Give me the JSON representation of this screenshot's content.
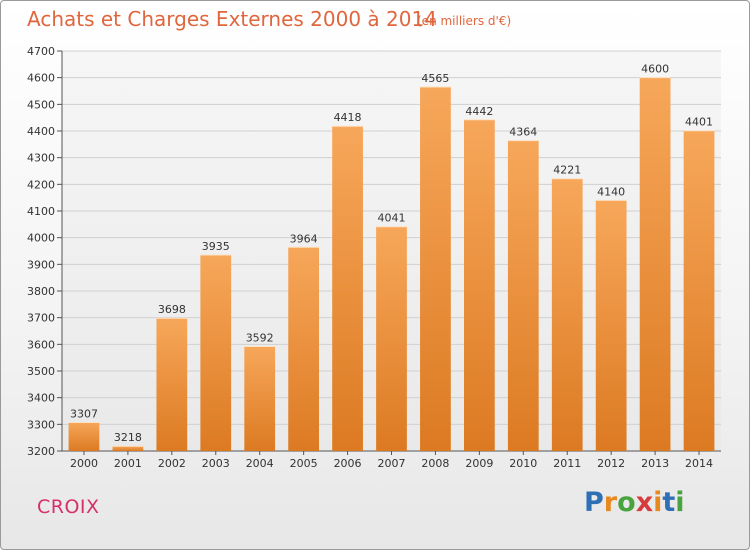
{
  "title": "Achats et Charges Externes 2000 à 2014",
  "subtitle": "(en milliers d'€)",
  "place": "CROIX",
  "logo": {
    "text": "Proxiti",
    "letter_colors": [
      "#2f6fb5",
      "#e8891f",
      "#49a33f",
      "#d73c3c",
      "#e8891f",
      "#2f6fb5",
      "#49a33f"
    ]
  },
  "colors": {
    "bar_top": "#f7a75a",
    "bar_bottom": "#dc7a22",
    "title": "#e0663e",
    "place": "#d6306b",
    "grid": "#d0d0d0"
  },
  "chart_data": {
    "type": "bar",
    "categories": [
      "2000",
      "2001",
      "2002",
      "2003",
      "2004",
      "2005",
      "2006",
      "2007",
      "2008",
      "2009",
      "2010",
      "2011",
      "2012",
      "2013",
      "2014"
    ],
    "values": [
      3307,
      3218,
      3698,
      3935,
      3592,
      3964,
      4418,
      4041,
      4565,
      4442,
      4364,
      4221,
      4140,
      4600,
      4401
    ],
    "title": "Achats et Charges Externes 2000 à 2014",
    "xlabel": "",
    "ylabel": "",
    "ylim": [
      3200,
      4700
    ],
    "yticks": [
      3200,
      3300,
      3400,
      3500,
      3600,
      3700,
      3800,
      3900,
      4000,
      4100,
      4200,
      4300,
      4400,
      4500,
      4600,
      4700
    ],
    "grid": true,
    "data_labels": true
  }
}
